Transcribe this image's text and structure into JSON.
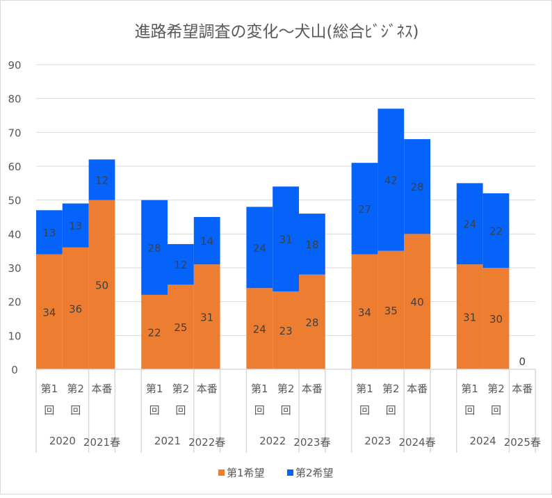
{
  "chart_data": {
    "type": "bar",
    "stacked": true,
    "title": "進路希望調査の変化～犬山(総合ﾋﾞｼﾞﾈｽ)",
    "ylim": [
      0,
      90
    ],
    "yticks": [
      0,
      10,
      20,
      30,
      40,
      50,
      60,
      70,
      80,
      90
    ],
    "grid": true,
    "legend_position": "bottom",
    "colors": {
      "第1希望": "#ED7D31",
      "第2希望": "#0563FA"
    },
    "groups": [
      {
        "year": "2020",
        "final": "2021春"
      },
      {
        "year": "2021",
        "final": "2022春"
      },
      {
        "year": "2022",
        "final": "2023春"
      },
      {
        "year": "2023",
        "final": "2024春"
      },
      {
        "year": "2024",
        "final": "2025春"
      }
    ],
    "category_labels": [
      [
        "第1",
        "回"
      ],
      [
        "第2",
        "回"
      ],
      [
        "本番",
        ""
      ]
    ],
    "series": [
      {
        "name": "第1希望",
        "values": [
          [
            34,
            36,
            50
          ],
          [
            22,
            25,
            31
          ],
          [
            24,
            23,
            28
          ],
          [
            34,
            35,
            40
          ],
          [
            31,
            30,
            0
          ]
        ]
      },
      {
        "name": "第2希望",
        "values": [
          [
            13,
            13,
            12
          ],
          [
            28,
            12,
            14
          ],
          [
            24,
            31,
            18
          ],
          [
            27,
            42,
            28
          ],
          [
            24,
            22,
            null
          ]
        ]
      }
    ]
  }
}
